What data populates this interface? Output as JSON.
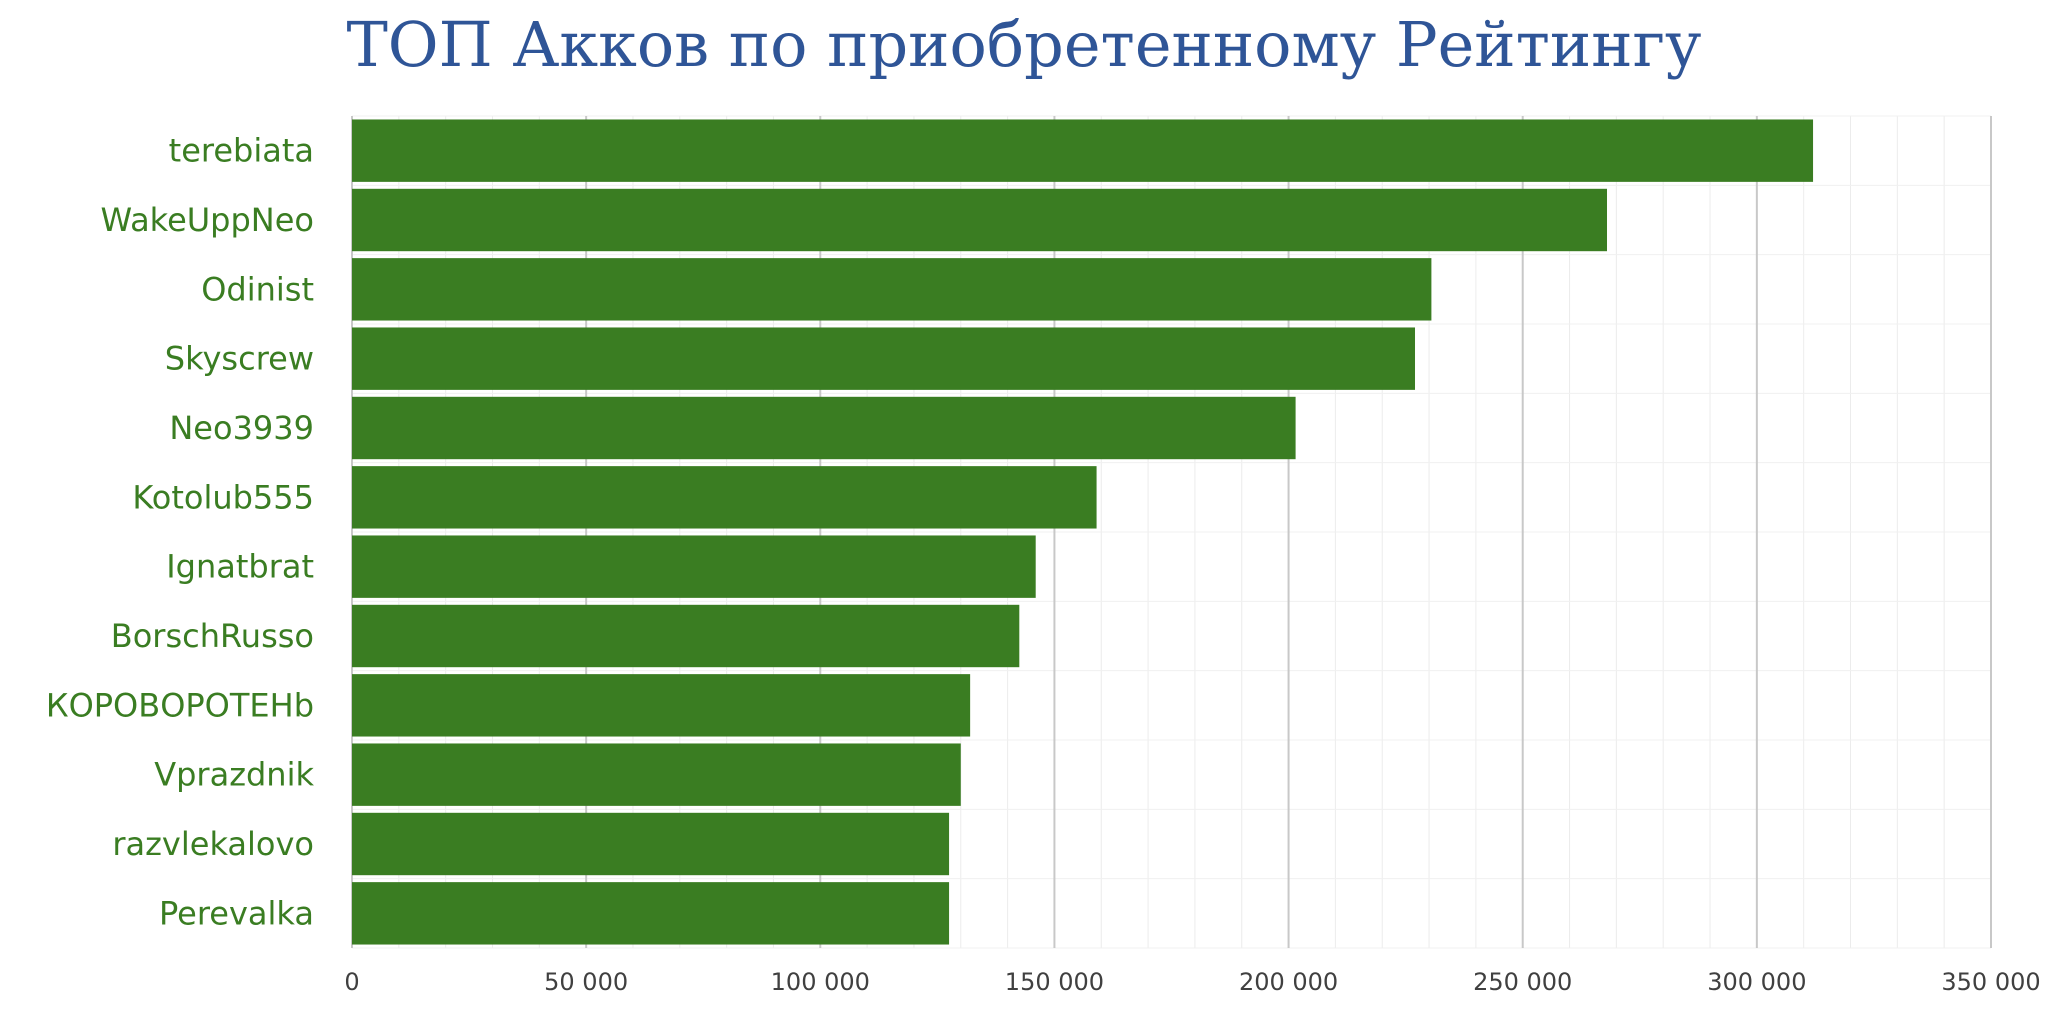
{
  "chart_data": {
    "type": "bar",
    "orientation": "horizontal",
    "title": "ТОП Акков по приобретенному Рейтингу",
    "xlabel": "",
    "ylabel": "",
    "categories": [
      "terebiata",
      "WakeUppNeo",
      "Odinist",
      "Skyscrew",
      "Neo3939",
      "Kotolub555",
      "Ignatbrat",
      "BorschRusso",
      "КОРОВОРОТЕНb",
      "Vprazdnik",
      "razvlekalovo",
      "Perevalka"
    ],
    "values": [
      312000,
      268000,
      230500,
      227000,
      201500,
      159000,
      146000,
      142500,
      132000,
      130000,
      127500,
      127500
    ],
    "xlim": [
      0,
      350000
    ],
    "xticks": [
      0,
      50000,
      100000,
      150000,
      200000,
      250000,
      300000,
      350000
    ],
    "xtick_labels": [
      "0",
      "50 000",
      "100 000",
      "150 000",
      "200 000",
      "250 000",
      "300 000",
      "350 000"
    ],
    "grid": true,
    "legend": "none",
    "bar_color": "#3a7d22",
    "label_color": "#3a7d22",
    "title_color": "#2f5597"
  }
}
